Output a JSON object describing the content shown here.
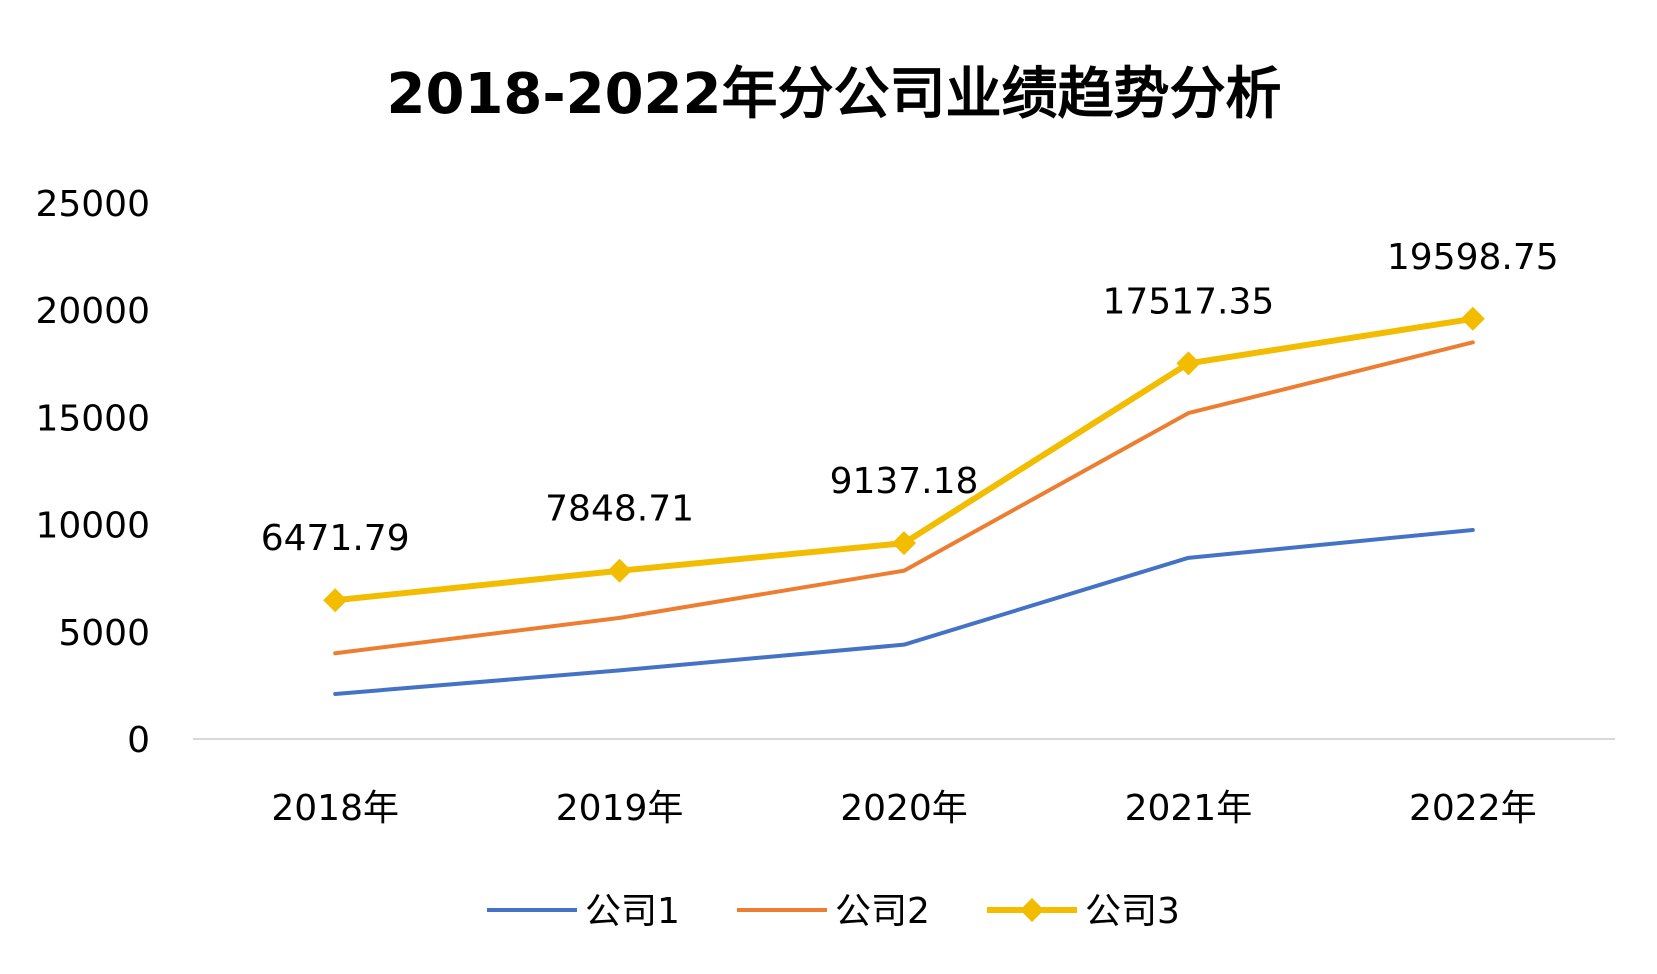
{
  "chart_data": {
    "type": "line",
    "title": "2018-2022年分公司业绩趋势分析",
    "categories": [
      "2018年",
      "2019年",
      "2020年",
      "2021年",
      "2022年"
    ],
    "ylim": [
      0,
      25000
    ],
    "yticks": [
      "0",
      "5000",
      "10000",
      "15000",
      "20000",
      "25000"
    ],
    "grid": false,
    "legend": "bottom",
    "series": [
      {
        "name": "公司1",
        "color": "#4472C4",
        "marker": "none",
        "values": [
          2100,
          3200,
          4400,
          8450,
          9750
        ]
      },
      {
        "name": "公司2",
        "color": "#ED7D31",
        "marker": "none",
        "values": [
          4000,
          5650,
          7850,
          15200,
          18500
        ]
      },
      {
        "name": "公司3",
        "color": "#F2BC00",
        "marker": "diamond",
        "values": [
          6471.79,
          7848.71,
          9137.18,
          17517.35,
          19598.75
        ],
        "data_labels": [
          "6471.79",
          "7848.71",
          "9137.18",
          "17517.35",
          "19598.75"
        ]
      }
    ]
  }
}
